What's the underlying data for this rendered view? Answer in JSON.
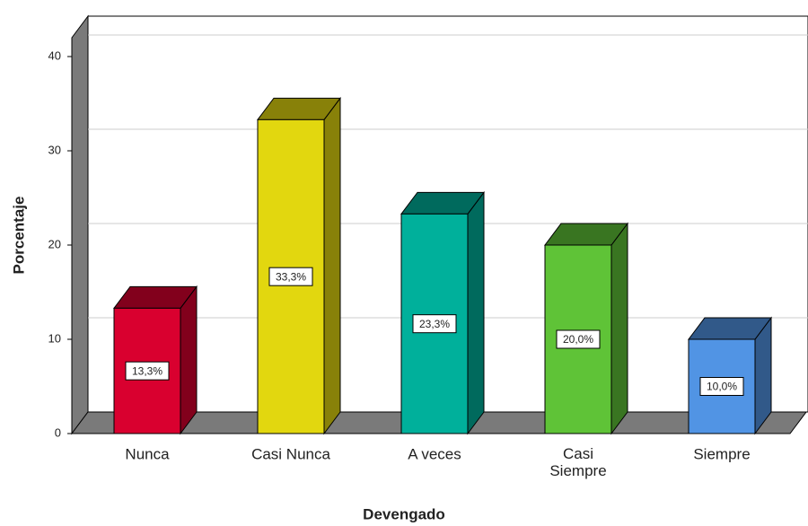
{
  "chart_data": {
    "type": "bar3d",
    "x_label": "Devengado",
    "y_label": "Porcentaje",
    "categories": [
      "Nunca",
      "Casi Nunca",
      "A veces",
      "Casi Siempre",
      "Siempre"
    ],
    "values": [
      13.3,
      33.3,
      23.3,
      20.0,
      10.0
    ],
    "value_labels": [
      "13,3%",
      "33,3%",
      "23,3%",
      "20,0%",
      "10,0%"
    ],
    "colors": [
      "#d9002f",
      "#e2d70f",
      "#00b09b",
      "#5fc337",
      "#5194e4"
    ],
    "ylim": [
      0,
      42
    ],
    "yticks": [
      0,
      10,
      20,
      30,
      40
    ],
    "grid": true
  }
}
